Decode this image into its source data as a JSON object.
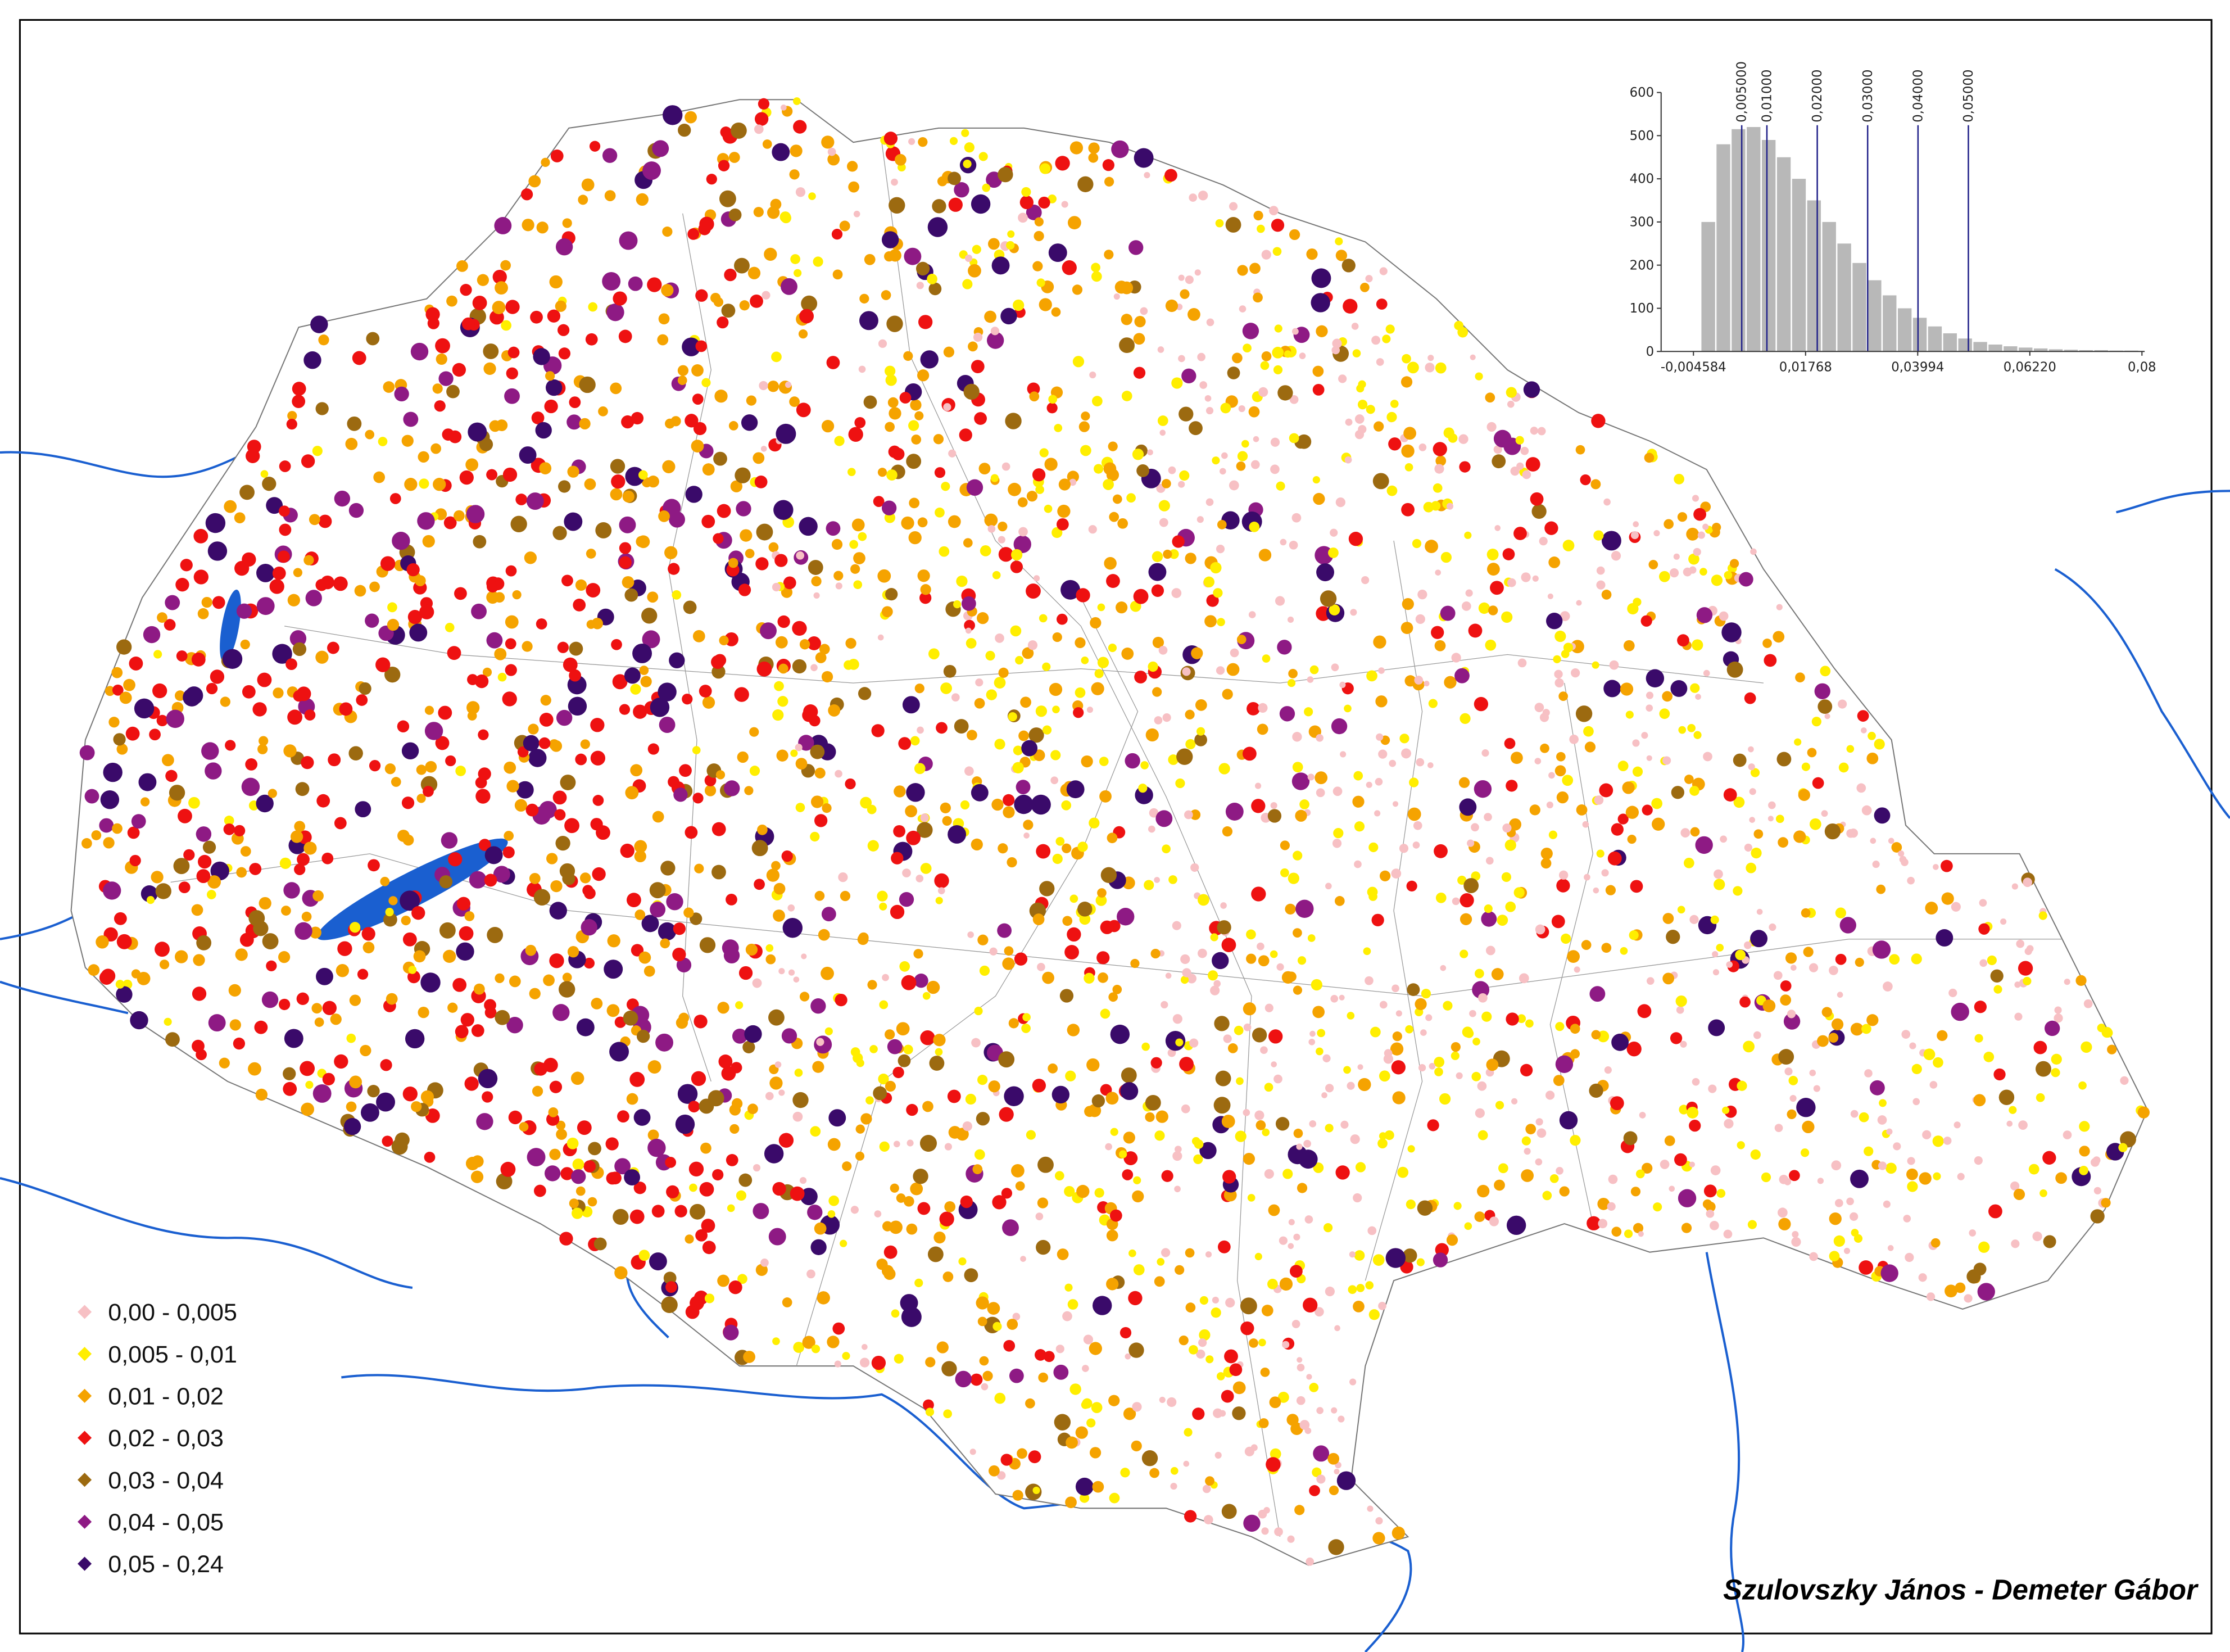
{
  "map": {
    "legend": [
      {
        "label": "0,00  - 0,005",
        "color": "#f7c0c4"
      },
      {
        "label": "0,005  - 0,01",
        "color": "#ffee00"
      },
      {
        "label": "0,01  - 0,02",
        "color": "#f5a300"
      },
      {
        "label": "0,02  - 0,03",
        "color": "#ee1111"
      },
      {
        "label": "0,03  - 0,04",
        "color": "#9c6a10"
      },
      {
        "label": "0,04  - 0,05",
        "color": "#8e1a84"
      },
      {
        "label": "0,05  - 0,24",
        "color": "#3a0a6a"
      }
    ],
    "credit": "Szulovszky János - Demeter Gábor",
    "histogram": {
      "type": "histogram",
      "color": "#b8b8b8",
      "bins": [
        -0.003,
        0,
        0.003,
        0.006,
        0.009,
        0.012,
        0.015,
        0.018,
        0.021,
        0.024,
        0.027,
        0.03,
        0.033,
        0.036,
        0.039,
        0.042,
        0.045,
        0.048,
        0.051,
        0.054,
        0.057,
        0.06,
        0.063,
        0.066,
        0.069,
        0.072,
        0.075,
        0.078,
        0.081,
        0.084
      ],
      "values": [
        300,
        480,
        515,
        520,
        490,
        450,
        400,
        350,
        300,
        250,
        205,
        165,
        130,
        100,
        78,
        58,
        42,
        30,
        22,
        16,
        12,
        9,
        7,
        5,
        4,
        3,
        3,
        2,
        2
      ],
      "xlim": [
        -0.011,
        0.085
      ],
      "ylim": [
        0,
        600
      ],
      "yticks": [
        0,
        100,
        200,
        300,
        400,
        500,
        600
      ],
      "xticks": [
        {
          "value": -0.004584,
          "label": "-0,004584"
        },
        {
          "value": 0.01768,
          "label": "0,01768"
        },
        {
          "value": 0.03994,
          "label": "0,03994"
        },
        {
          "value": 0.0622,
          "label": "0,06220"
        },
        {
          "value": 0.08446,
          "label": "0,08"
        }
      ],
      "breaks": [
        {
          "value": 0.005,
          "label": "0,005000"
        },
        {
          "value": 0.01,
          "label": "0,01000"
        },
        {
          "value": 0.02,
          "label": "0,02000"
        },
        {
          "value": 0.03,
          "label": "0,03000"
        },
        {
          "value": 0.04,
          "label": "0,04000"
        },
        {
          "value": 0.05,
          "label": "0,05000"
        }
      ],
      "break_color": "#22228a"
    }
  }
}
